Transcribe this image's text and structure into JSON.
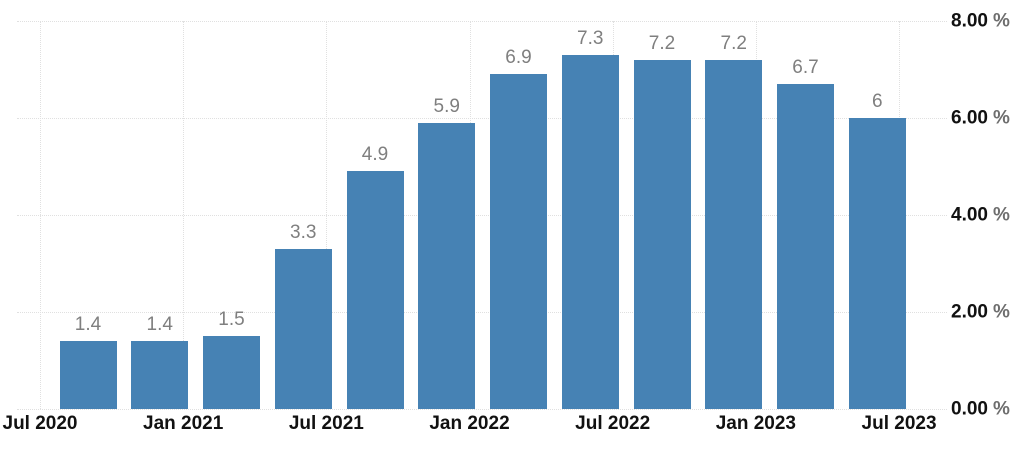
{
  "chart_data": {
    "type": "bar",
    "title": "",
    "values": [
      1.4,
      1.4,
      1.5,
      3.3,
      4.9,
      5.9,
      6.9,
      7.3,
      7.2,
      7.2,
      6.7,
      6
    ],
    "value_labels": [
      "1.4",
      "1.4",
      "1.5",
      "3.3",
      "4.9",
      "5.9",
      "6.9",
      "7.3",
      "7.2",
      "7.2",
      "6.7",
      "6"
    ],
    "x_tick_labels": [
      "Jul 2020",
      "Jan 2021",
      "Jul 2021",
      "Jan 2022",
      "Jul 2022",
      "Jan 2023",
      "Jul 2023"
    ],
    "bars_per_x_tick_interval": 2,
    "y_ticks": [
      {
        "value": 0,
        "number": "0.00",
        "suffix": "%"
      },
      {
        "value": 2,
        "number": "2.00",
        "suffix": "%"
      },
      {
        "value": 4,
        "number": "4.00",
        "suffix": "%"
      },
      {
        "value": 6,
        "number": "6.00",
        "suffix": "%"
      },
      {
        "value": 8,
        "number": "8.00",
        "suffix": "%"
      }
    ],
    "ylim": [
      0,
      8
    ],
    "grid": true,
    "legend": "none",
    "y_axis_side": "right",
    "colors": {
      "bar": "#4682b4",
      "value_label": "#7f7f7f",
      "axis_label": "#111111",
      "percent_sign": "#6e6e6e",
      "gridline": "#e0e0e0",
      "background": "#ffffff"
    }
  }
}
